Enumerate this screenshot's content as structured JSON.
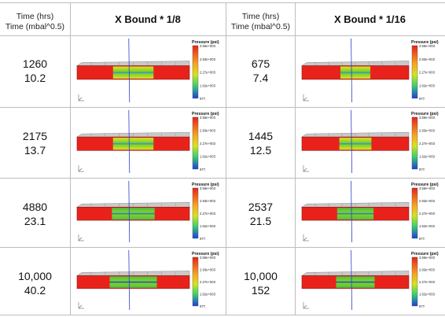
{
  "header": {
    "time_label_1": "Time (hrs)",
    "time_label_2": "Time (mbal^0.5)",
    "col1_title": "X Bound * 1/8",
    "col2_title": "X Bound * 1/16"
  },
  "legend": {
    "title": "Pressure (psi)",
    "ticks": [
      "3.56e+003",
      "2.93e+003",
      "2.27e+003",
      "1.62e+003",
      "977."
    ]
  },
  "colors": {
    "hot": "#e8221a",
    "green": "#7ed321",
    "blue": "#1a3fe0"
  },
  "rows": [
    {
      "left": {
        "hrs": "1260",
        "mbal": "10.2"
      },
      "right": {
        "hrs": "675",
        "mbal": "7.4"
      }
    },
    {
      "left": {
        "hrs": "2175",
        "mbal": "13.7"
      },
      "right": {
        "hrs": "1445",
        "mbal": "12.5"
      }
    },
    {
      "left": {
        "hrs": "4880",
        "mbal": "23.1"
      },
      "right": {
        "hrs": "2537",
        "mbal": "21.5"
      }
    },
    {
      "left": {
        "hrs": "10,000",
        "mbal": "40.2"
      },
      "right": {
        "hrs": "10,000",
        "mbal": "152"
      }
    }
  ]
}
